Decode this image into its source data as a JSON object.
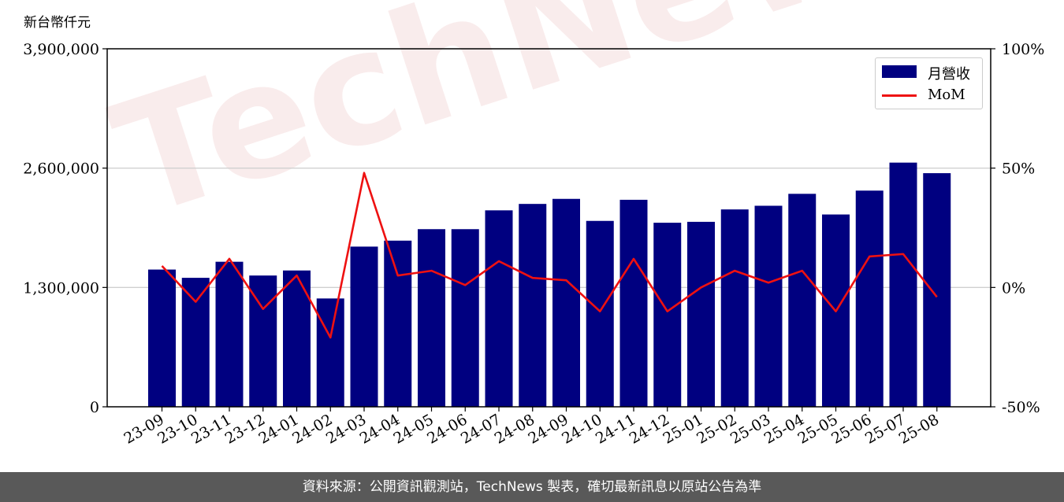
{
  "unit_label": "新台幣仟元",
  "watermark": "TechNews",
  "footer": "資料來源：公開資訊觀測站，TechNews 製表，確切最新訊息以原站公告為準",
  "colors": {
    "bar": "#000080",
    "line": "#ee1111",
    "grid": "#d0d0d0"
  },
  "chart_data": {
    "type": "bar",
    "categories": [
      "23-09",
      "23-10",
      "23-11",
      "23-12",
      "24-01",
      "24-02",
      "24-03",
      "24-04",
      "24-05",
      "24-06",
      "24-07",
      "24-08",
      "24-09",
      "24-10",
      "24-11",
      "24-12",
      "25-01",
      "25-02",
      "25-03",
      "25-04",
      "25-05",
      "25-06",
      "25-07",
      "25-08"
    ],
    "series": [
      {
        "name": "月營收",
        "type": "bar",
        "axis": "left",
        "values": [
          1495000,
          1405000,
          1580000,
          1430000,
          1485000,
          1180000,
          1745000,
          1810000,
          1935000,
          1935000,
          2140000,
          2210000,
          2265000,
          2025000,
          2255000,
          2005000,
          2015000,
          2150000,
          2190000,
          2320000,
          2095000,
          2355000,
          2660000,
          2545000
        ]
      },
      {
        "name": "MoM",
        "type": "line",
        "axis": "right",
        "values": [
          9,
          -6,
          12,
          -9,
          5,
          -21,
          48,
          5,
          7,
          1,
          11,
          4,
          3,
          -10,
          12,
          -10,
          0,
          7,
          2,
          7,
          -10,
          13,
          14,
          -4
        ]
      }
    ],
    "y_left": {
      "ylim": [
        0,
        3900000
      ],
      "ticks": [
        0,
        1300000,
        2600000,
        3900000
      ],
      "tick_labels": [
        "0",
        "1,300,000",
        "2,600,000",
        "3,900,000"
      ]
    },
    "y_right": {
      "ylim": [
        -50,
        100
      ],
      "ticks": [
        -50,
        0,
        50,
        100
      ],
      "tick_labels": [
        "-50%",
        "0%",
        "50%",
        "100%"
      ]
    },
    "grid": "horizontal",
    "legend": {
      "position": "top-right",
      "entries": [
        "月營收",
        "MoM"
      ]
    }
  }
}
